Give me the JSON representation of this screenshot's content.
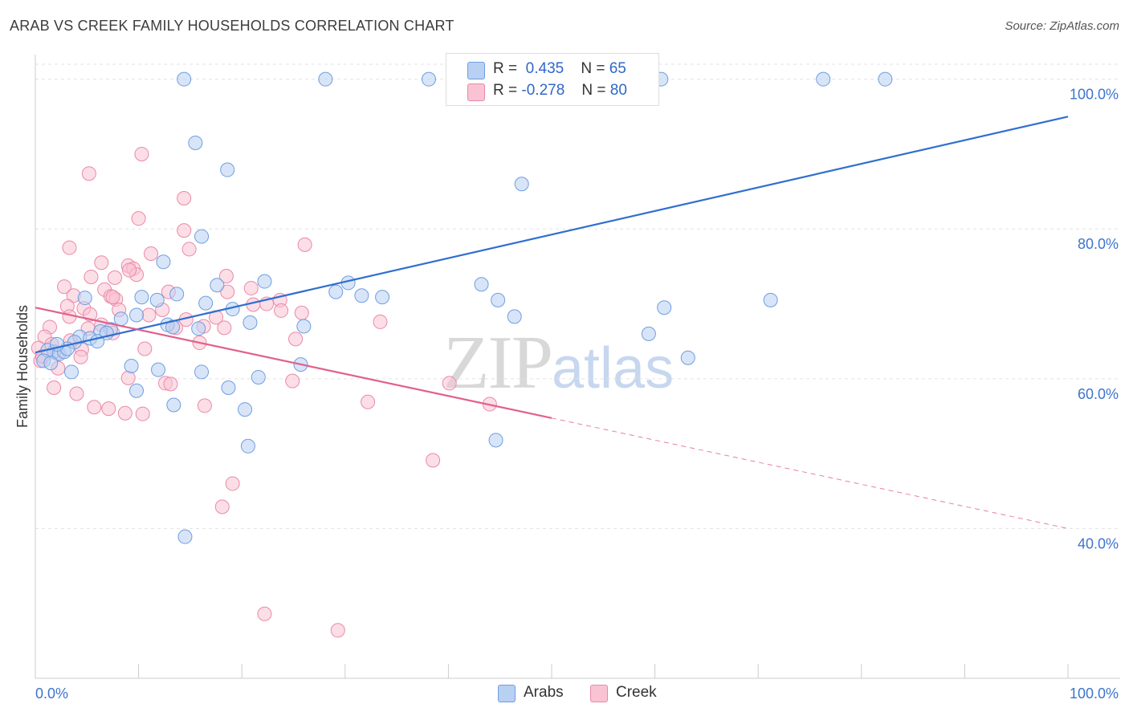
{
  "title": "ARAB VS CREEK FAMILY HOUSEHOLDS CORRELATION CHART",
  "source": "Source: ZipAtlas.com",
  "watermark": {
    "zip": "ZIP",
    "atlas": "atlas"
  },
  "legend_top": {
    "rows": [
      {
        "r_label": "R =",
        "r_value": "0.435",
        "n_label": "N =",
        "n_value": "65"
      },
      {
        "r_label": "R =",
        "r_value": "-0.278",
        "n_label": "N =",
        "n_value": "80"
      }
    ]
  },
  "legend_bottom": {
    "arabs": "Arabs",
    "creek": "Creek"
  },
  "colors": {
    "arabs_fill": "#b8d0f2",
    "arabs_stroke": "#6e9ee0",
    "arabs_line": "#2f6fcf",
    "creek_fill": "#f9c3d4",
    "creek_stroke": "#ea89a8",
    "creek_line": "#e0608c",
    "axis_label": "#3e74cc",
    "grid": "#e2e2e2"
  },
  "chart_data": {
    "type": "scatter",
    "title": "ARAB VS CREEK FAMILY HOUSEHOLDS CORRELATION CHART",
    "xlabel": "",
    "ylabel": "Family Households",
    "xlim": [
      0,
      100
    ],
    "ylim": [
      20,
      102
    ],
    "x_tick_labels": [
      "0.0%",
      "100.0%"
    ],
    "y_ticks": [
      40,
      60,
      80,
      100
    ],
    "y_tick_labels": [
      "40.0%",
      "60.0%",
      "80.0%",
      "100.0%"
    ],
    "grid": true,
    "legend_position": "top-center",
    "series": [
      {
        "name": "Arabs",
        "r": 0.435,
        "n": 65,
        "trend": {
          "x": [
            0,
            100
          ],
          "y": [
            63.5,
            95.0
          ],
          "dashed_from": null
        },
        "points": [
          [
            14.4,
            100
          ],
          [
            28.1,
            100
          ],
          [
            38.1,
            100
          ],
          [
            60.6,
            100
          ],
          [
            76.3,
            100
          ],
          [
            82.3,
            100
          ],
          [
            15.5,
            91.5
          ],
          [
            18.6,
            87.9
          ],
          [
            47.1,
            86.0
          ],
          [
            16.1,
            79.0
          ],
          [
            12.4,
            75.6
          ],
          [
            22.2,
            73.0
          ],
          [
            17.6,
            72.5
          ],
          [
            30.3,
            72.8
          ],
          [
            29.1,
            71.6
          ],
          [
            33.6,
            70.9
          ],
          [
            13.7,
            71.3
          ],
          [
            10.3,
            70.9
          ],
          [
            4.8,
            70.8
          ],
          [
            16.5,
            70.1
          ],
          [
            11.8,
            70.5
          ],
          [
            19.1,
            69.3
          ],
          [
            31.6,
            71.1
          ],
          [
            9.8,
            68.5
          ],
          [
            8.3,
            68.0
          ],
          [
            20.8,
            67.5
          ],
          [
            12.8,
            67.2
          ],
          [
            13.3,
            66.9
          ],
          [
            7.3,
            66.6
          ],
          [
            6.3,
            66.3
          ],
          [
            6.9,
            66.1
          ],
          [
            4.3,
            65.6
          ],
          [
            5.3,
            65.4
          ],
          [
            3.8,
            64.9
          ],
          [
            1.8,
            63.6
          ],
          [
            1.2,
            63.8
          ],
          [
            2.3,
            63.3
          ],
          [
            0.8,
            62.4
          ],
          [
            1.5,
            62.1
          ],
          [
            2.8,
            63.6
          ],
          [
            3.5,
            60.9
          ],
          [
            9.3,
            61.7
          ],
          [
            11.9,
            61.2
          ],
          [
            16.1,
            60.9
          ],
          [
            9.8,
            58.4
          ],
          [
            18.7,
            58.8
          ],
          [
            21.6,
            60.2
          ],
          [
            25.7,
            61.9
          ],
          [
            43.2,
            72.6
          ],
          [
            44.8,
            70.5
          ],
          [
            46.4,
            68.3
          ],
          [
            60.9,
            69.5
          ],
          [
            59.4,
            66.0
          ],
          [
            71.2,
            70.5
          ],
          [
            63.2,
            62.8
          ],
          [
            44.6,
            51.8
          ],
          [
            20.3,
            55.9
          ],
          [
            13.4,
            56.5
          ],
          [
            20.6,
            51.0
          ],
          [
            14.5,
            38.9
          ],
          [
            3.1,
            64.0
          ],
          [
            2.1,
            64.6
          ],
          [
            15.8,
            66.7
          ],
          [
            6.0,
            65.0
          ],
          [
            26.0,
            67.0
          ]
        ]
      },
      {
        "name": "Creek",
        "r": -0.278,
        "n": 80,
        "trend": {
          "x": [
            0,
            100
          ],
          "y": [
            69.5,
            40.0
          ],
          "dashed_from": 50.0
        },
        "points": [
          [
            10.3,
            90.0
          ],
          [
            5.2,
            87.4
          ],
          [
            14.4,
            84.1
          ],
          [
            10.0,
            81.4
          ],
          [
            14.4,
            79.8
          ],
          [
            3.3,
            77.5
          ],
          [
            14.9,
            77.3
          ],
          [
            26.1,
            77.9
          ],
          [
            11.2,
            76.7
          ],
          [
            6.4,
            75.5
          ],
          [
            9.0,
            75.1
          ],
          [
            9.5,
            74.7
          ],
          [
            9.8,
            73.9
          ],
          [
            5.4,
            73.6
          ],
          [
            7.7,
            73.5
          ],
          [
            18.5,
            73.7
          ],
          [
            2.8,
            72.3
          ],
          [
            6.7,
            71.9
          ],
          [
            18.6,
            71.6
          ],
          [
            20.9,
            72.1
          ],
          [
            3.7,
            71.1
          ],
          [
            7.3,
            71.0
          ],
          [
            12.9,
            71.6
          ],
          [
            7.8,
            70.6
          ],
          [
            22.4,
            70.0
          ],
          [
            23.7,
            70.5
          ],
          [
            3.1,
            69.7
          ],
          [
            4.7,
            69.4
          ],
          [
            8.1,
            69.2
          ],
          [
            11.0,
            68.5
          ],
          [
            5.3,
            68.6
          ],
          [
            3.3,
            68.3
          ],
          [
            14.6,
            67.9
          ],
          [
            17.5,
            68.2
          ],
          [
            6.4,
            67.2
          ],
          [
            13.6,
            66.8
          ],
          [
            16.3,
            67.0
          ],
          [
            5.1,
            66.7
          ],
          [
            1.4,
            66.9
          ],
          [
            7.5,
            66.1
          ],
          [
            0.9,
            65.6
          ],
          [
            25.8,
            68.8
          ],
          [
            23.8,
            69.1
          ],
          [
            25.2,
            65.3
          ],
          [
            33.4,
            67.6
          ],
          [
            3.4,
            65.1
          ],
          [
            1.6,
            64.6
          ],
          [
            4.5,
            63.9
          ],
          [
            0.3,
            64.1
          ],
          [
            10.6,
            64.0
          ],
          [
            15.9,
            64.8
          ],
          [
            2.1,
            63.4
          ],
          [
            0.5,
            62.4
          ],
          [
            4.4,
            62.9
          ],
          [
            2.2,
            61.4
          ],
          [
            9.0,
            60.1
          ],
          [
            12.6,
            59.4
          ],
          [
            24.9,
            59.7
          ],
          [
            40.1,
            59.4
          ],
          [
            1.8,
            58.8
          ],
          [
            4.0,
            58.0
          ],
          [
            13.1,
            59.3
          ],
          [
            32.2,
            56.9
          ],
          [
            7.1,
            56.0
          ],
          [
            5.7,
            56.2
          ],
          [
            8.7,
            55.4
          ],
          [
            10.4,
            55.3
          ],
          [
            16.4,
            56.4
          ],
          [
            44.0,
            56.6
          ],
          [
            38.5,
            49.1
          ],
          [
            19.1,
            46.0
          ],
          [
            18.1,
            42.9
          ],
          [
            22.2,
            28.6
          ],
          [
            29.3,
            26.4
          ],
          [
            7.5,
            70.9
          ],
          [
            12.3,
            69.2
          ],
          [
            18.3,
            66.8
          ],
          [
            0.7,
            63.0
          ],
          [
            21.1,
            69.9
          ],
          [
            9.1,
            74.5
          ]
        ]
      }
    ]
  }
}
